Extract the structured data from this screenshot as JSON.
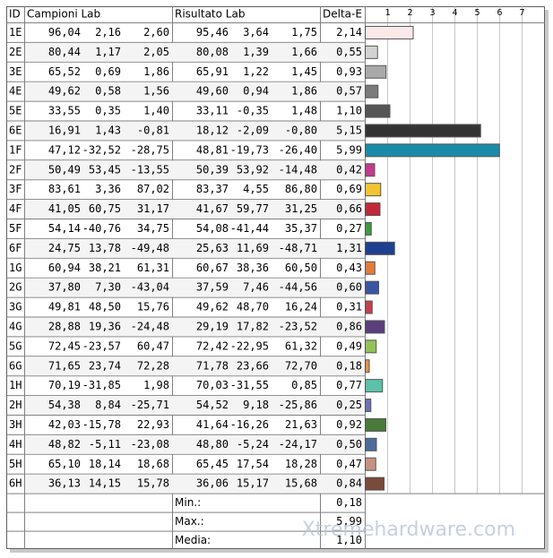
{
  "table": {
    "headers": {
      "id": "ID",
      "campioni": "Campioni Lab",
      "risultato": "Risultato Lab",
      "delta_e": "Delta-E"
    },
    "rows": [
      {
        "id": "1E",
        "campioni": [
          "96,04",
          "2,16",
          "2,60"
        ],
        "risultato": [
          "95,46",
          "3,64",
          "1,75"
        ],
        "delta_e": 2.14,
        "delta_e_label": "2,14",
        "color": "#fbe9ea"
      },
      {
        "id": "2E",
        "campioni": [
          "80,44",
          "1,17",
          "2,05"
        ],
        "risultato": [
          "80,08",
          "1,39",
          "1,66"
        ],
        "delta_e": 0.55,
        "delta_e_label": "0,55",
        "color": "#d2d2d2"
      },
      {
        "id": "3E",
        "campioni": [
          "65,52",
          "0,69",
          "1,86"
        ],
        "risultato": [
          "65,91",
          "1,22",
          "1,45"
        ],
        "delta_e": 0.93,
        "delta_e_label": "0,93",
        "color": "#a9a9a9"
      },
      {
        "id": "4E",
        "campioni": [
          "49,62",
          "0,58",
          "1,56"
        ],
        "risultato": [
          "49,60",
          "0,94",
          "1,86"
        ],
        "delta_e": 0.57,
        "delta_e_label": "0,57",
        "color": "#7b7b7b"
      },
      {
        "id": "5E",
        "campioni": [
          "33,55",
          "0,35",
          "1,40"
        ],
        "risultato": [
          "33,11",
          "-0,35",
          "1,48"
        ],
        "delta_e": 1.1,
        "delta_e_label": "1,10",
        "color": "#555555"
      },
      {
        "id": "6E",
        "campioni": [
          "16,91",
          "1,43",
          "-0,81"
        ],
        "risultato": [
          "18,12",
          "-2,09",
          "-0,80"
        ],
        "delta_e": 5.15,
        "delta_e_label": "5,15",
        "color": "#333333"
      },
      {
        "id": "1F",
        "campioni": [
          "47,12",
          "-32,52",
          "-28,75"
        ],
        "risultato": [
          "48,81",
          "-19,73",
          "-26,40"
        ],
        "delta_e": 5.99,
        "delta_e_label": "5,99",
        "color": "#1a8aa6"
      },
      {
        "id": "2F",
        "campioni": [
          "50,49",
          "53,45",
          "-13,55"
        ],
        "risultato": [
          "50,39",
          "53,92",
          "-14,48"
        ],
        "delta_e": 0.42,
        "delta_e_label": "0,42",
        "color": "#c23b8c"
      },
      {
        "id": "3F",
        "campioni": [
          "83,61",
          "3,36",
          "87,02"
        ],
        "risultato": [
          "83,37",
          "4,55",
          "86,80"
        ],
        "delta_e": 0.69,
        "delta_e_label": "0,69",
        "color": "#f2c431"
      },
      {
        "id": "4F",
        "campioni": [
          "41,05",
          "60,75",
          "31,17"
        ],
        "risultato": [
          "41,67",
          "59,77",
          "31,25"
        ],
        "delta_e": 0.66,
        "delta_e_label": "0,66",
        "color": "#c2283b"
      },
      {
        "id": "5F",
        "campioni": [
          "54,14",
          "-40,76",
          "34,75"
        ],
        "risultato": [
          "54,08",
          "-41,44",
          "35,37"
        ],
        "delta_e": 0.27,
        "delta_e_label": "0,27",
        "color": "#3d9a3e"
      },
      {
        "id": "6F",
        "campioni": [
          "24,75",
          "13,78",
          "-49,48"
        ],
        "risultato": [
          "25,63",
          "11,69",
          "-48,71"
        ],
        "delta_e": 1.31,
        "delta_e_label": "1,31",
        "color": "#1f3f8f"
      },
      {
        "id": "1G",
        "campioni": [
          "60,94",
          "38,21",
          "61,31"
        ],
        "risultato": [
          "60,67",
          "38,36",
          "60,50"
        ],
        "delta_e": 0.43,
        "delta_e_label": "0,43",
        "color": "#e27b3a"
      },
      {
        "id": "2G",
        "campioni": [
          "37,80",
          "7,30",
          "-43,04"
        ],
        "risultato": [
          "37,59",
          "7,46",
          "-44,56"
        ],
        "delta_e": 0.6,
        "delta_e_label": "0,60",
        "color": "#3a56a2"
      },
      {
        "id": "3G",
        "campioni": [
          "49,81",
          "48,50",
          "15,76"
        ],
        "risultato": [
          "49,62",
          "48,70",
          "16,24"
        ],
        "delta_e": 0.31,
        "delta_e_label": "0,31",
        "color": "#c3404c"
      },
      {
        "id": "4G",
        "campioni": [
          "28,88",
          "19,36",
          "-24,48"
        ],
        "risultato": [
          "29,19",
          "17,82",
          "-23,52"
        ],
        "delta_e": 0.86,
        "delta_e_label": "0,86",
        "color": "#5b3e7b"
      },
      {
        "id": "5G",
        "campioni": [
          "72,45",
          "-23,57",
          "60,47"
        ],
        "risultato": [
          "72,42",
          "-22,95",
          "61,32"
        ],
        "delta_e": 0.49,
        "delta_e_label": "0,49",
        "color": "#94c157"
      },
      {
        "id": "6G",
        "campioni": [
          "71,65",
          "23,74",
          "72,28"
        ],
        "risultato": [
          "71,78",
          "23,66",
          "72,70"
        ],
        "delta_e": 0.18,
        "delta_e_label": "0,18",
        "color": "#e3923f"
      },
      {
        "id": "1H",
        "campioni": [
          "70,19",
          "-31,85",
          "1,98"
        ],
        "risultato": [
          "70,03",
          "-31,55",
          "0,85"
        ],
        "delta_e": 0.77,
        "delta_e_label": "0,77",
        "color": "#5cc1a9"
      },
      {
        "id": "2H",
        "campioni": [
          "54,38",
          "8,84",
          "-25,71"
        ],
        "risultato": [
          "54,52",
          "9,18",
          "-25,86"
        ],
        "delta_e": 0.25,
        "delta_e_label": "0,25",
        "color": "#7070b2"
      },
      {
        "id": "3H",
        "campioni": [
          "42,03",
          "-15,78",
          "22,93"
        ],
        "risultato": [
          "41,64",
          "-16,26",
          "21,63"
        ],
        "delta_e": 0.92,
        "delta_e_label": "0,92",
        "color": "#4a7a3b"
      },
      {
        "id": "4H",
        "campioni": [
          "48,82",
          "-5,11",
          "-23,08"
        ],
        "risultato": [
          "48,80",
          "-5,24",
          "-24,17"
        ],
        "delta_e": 0.5,
        "delta_e_label": "0,50",
        "color": "#4b6b9b"
      },
      {
        "id": "5H",
        "campioni": [
          "65,10",
          "18,14",
          "18,68"
        ],
        "risultato": [
          "65,45",
          "17,54",
          "18,28"
        ],
        "delta_e": 0.47,
        "delta_e_label": "0,47",
        "color": "#c59181"
      },
      {
        "id": "6H",
        "campioni": [
          "36,13",
          "14,15",
          "15,78"
        ],
        "risultato": [
          "36,06",
          "15,17",
          "15,68"
        ],
        "delta_e": 0.84,
        "delta_e_label": "0,84",
        "color": "#7a4a3a"
      }
    ],
    "summary": [
      {
        "label": "Min.:",
        "value": 0.18,
        "value_label": "0,18"
      },
      {
        "label": "Max.:",
        "value": 5.99,
        "value_label": "5,99"
      },
      {
        "label": "Media:",
        "value": 1.1,
        "value_label": "1,10"
      }
    ]
  },
  "chart": {
    "xlim": [
      0,
      8
    ],
    "xticks": [
      1,
      2,
      3,
      4,
      5,
      6,
      7
    ]
  },
  "watermark": "Xtremehardware.com"
}
